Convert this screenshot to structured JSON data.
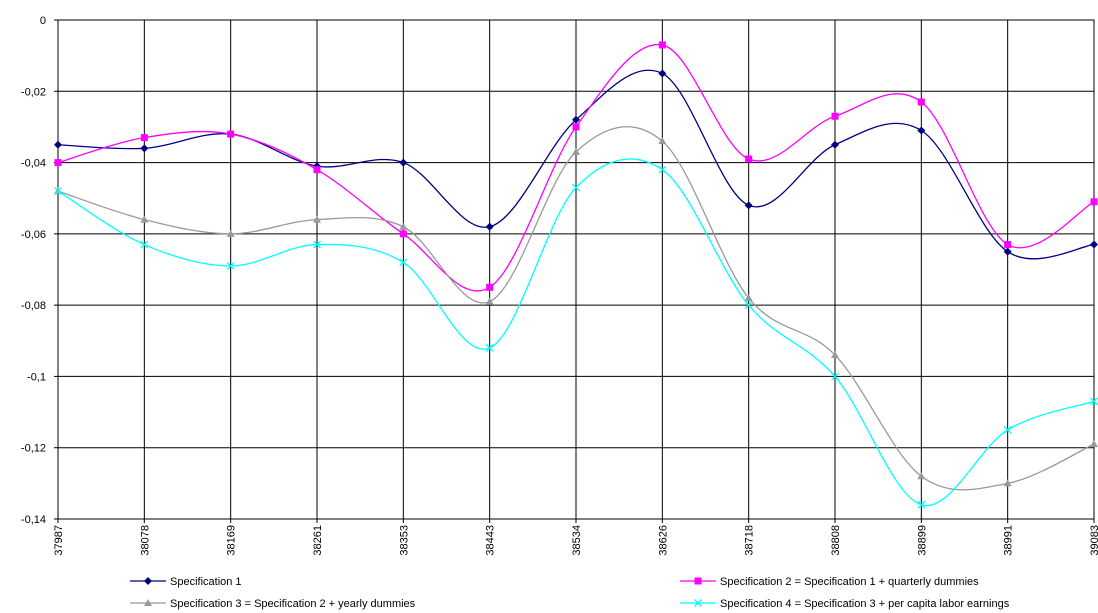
{
  "chart_data": {
    "type": "line",
    "smooth": true,
    "grid": true,
    "categories": [
      "37987",
      "38078",
      "38169",
      "38261",
      "38353",
      "38443",
      "38534",
      "38626",
      "38718",
      "38808",
      "38899",
      "38991",
      "39083"
    ],
    "ylim": [
      -0.14,
      0
    ],
    "yticks": [
      {
        "value": -0.14,
        "label": "-0,14"
      },
      {
        "value": -0.12,
        "label": "-0,12"
      },
      {
        "value": -0.1,
        "label": "-0,1"
      },
      {
        "value": -0.08,
        "label": "-0,08"
      },
      {
        "value": -0.06,
        "label": "-0,06"
      },
      {
        "value": -0.04,
        "label": "-0,04"
      },
      {
        "value": -0.02,
        "label": "-0,02"
      },
      0
    ],
    "series": [
      {
        "name": "Specification 1",
        "color": "#000080",
        "marker": "diamond",
        "values": [
          -0.035,
          -0.036,
          -0.032,
          -0.041,
          -0.04,
          -0.058,
          -0.028,
          -0.015,
          -0.052,
          -0.035,
          -0.031,
          -0.065,
          -0.063
        ]
      },
      {
        "name": "Specification 2 = Specification 1 + quarterly dummies",
        "color": "#ff00ff",
        "marker": "square",
        "values": [
          -0.04,
          -0.033,
          -0.032,
          -0.042,
          -0.06,
          -0.075,
          -0.03,
          -0.007,
          -0.039,
          -0.027,
          -0.023,
          -0.063,
          -0.051
        ]
      },
      {
        "name": "Specification 3 = Specification 2 + yearly dummies",
        "color": "#999999",
        "marker": "triangle",
        "values": [
          -0.048,
          -0.056,
          -0.06,
          -0.056,
          -0.058,
          -0.079,
          -0.037,
          -0.034,
          -0.078,
          -0.094,
          -0.128,
          -0.13,
          -0.119
        ]
      },
      {
        "name": "Specification 4 = Specification 3 + per capita labor earnings",
        "color": "#00ffff",
        "marker": "x",
        "values": [
          -0.048,
          -0.063,
          -0.069,
          -0.063,
          -0.068,
          -0.092,
          -0.047,
          -0.042,
          -0.08,
          -0.1,
          -0.136,
          -0.115,
          -0.107
        ]
      }
    ]
  }
}
